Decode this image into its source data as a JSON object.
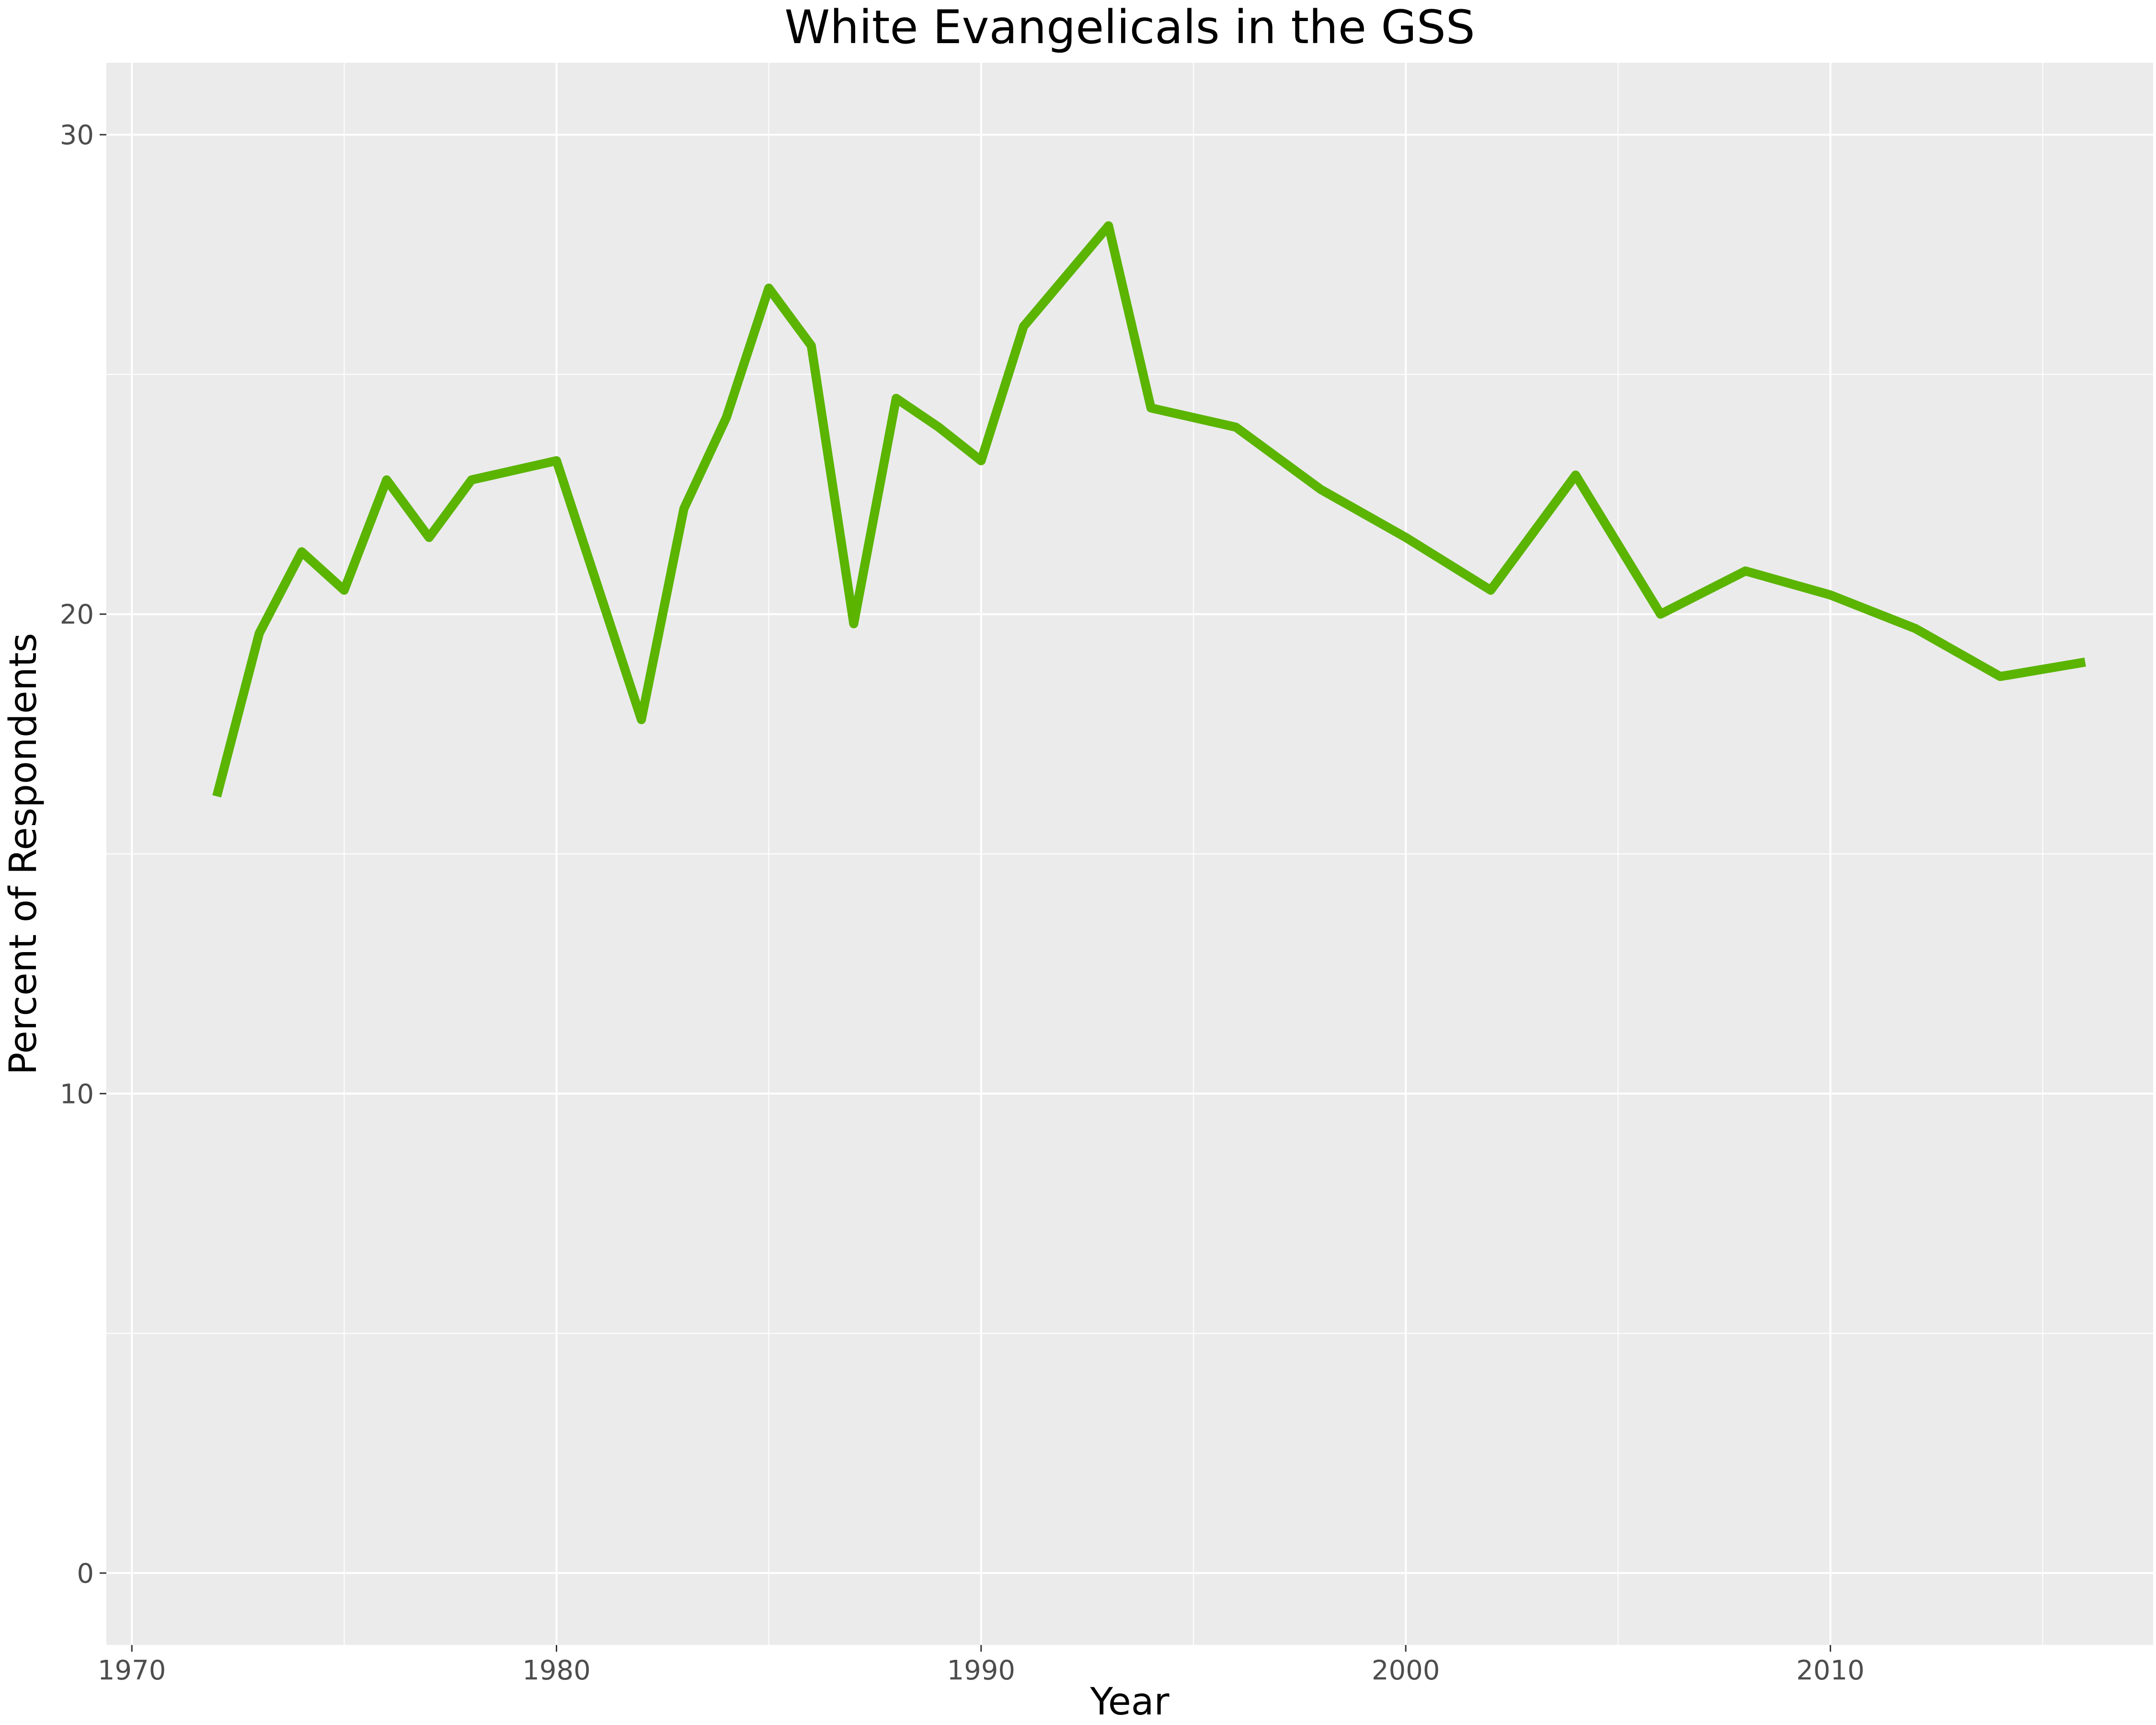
{
  "chart_data": {
    "type": "line",
    "title": "White Evangelicals in the GSS",
    "xlabel": "Year",
    "ylabel": "Percent of Respondents",
    "xlim": [
      1969.4,
      2017.6
    ],
    "ylim": [
      -1.5,
      31.5
    ],
    "x_ticks": [
      1970,
      1980,
      1990,
      2000,
      2010
    ],
    "x_minor_ticks": [
      1975,
      1985,
      1995,
      2005,
      2015
    ],
    "y_ticks": [
      0,
      10,
      20,
      30
    ],
    "y_minor_ticks": [
      5,
      15,
      25
    ],
    "grid": true,
    "legend": "none",
    "series_color": "#5ab400",
    "panel_color": "#ebebeb",
    "grid_color": "#ffffff",
    "x": [
      1972,
      1973,
      1974,
      1975,
      1976,
      1977,
      1978,
      1980,
      1982,
      1983,
      1984,
      1985,
      1986,
      1987,
      1988,
      1989,
      1990,
      1991,
      1993,
      1994,
      1996,
      1998,
      2000,
      2002,
      2004,
      2006,
      2008,
      2010,
      2012,
      2014,
      2016
    ],
    "values": [
      16.2,
      19.6,
      21.3,
      20.5,
      22.8,
      21.6,
      22.8,
      23.2,
      17.8,
      22.2,
      24.1,
      26.8,
      25.6,
      19.8,
      24.5,
      23.9,
      23.2,
      26.0,
      28.1,
      24.3,
      23.9,
      22.6,
      21.6,
      20.5,
      22.9,
      20.0,
      20.9,
      20.4,
      19.7,
      18.7,
      19.0
    ]
  }
}
